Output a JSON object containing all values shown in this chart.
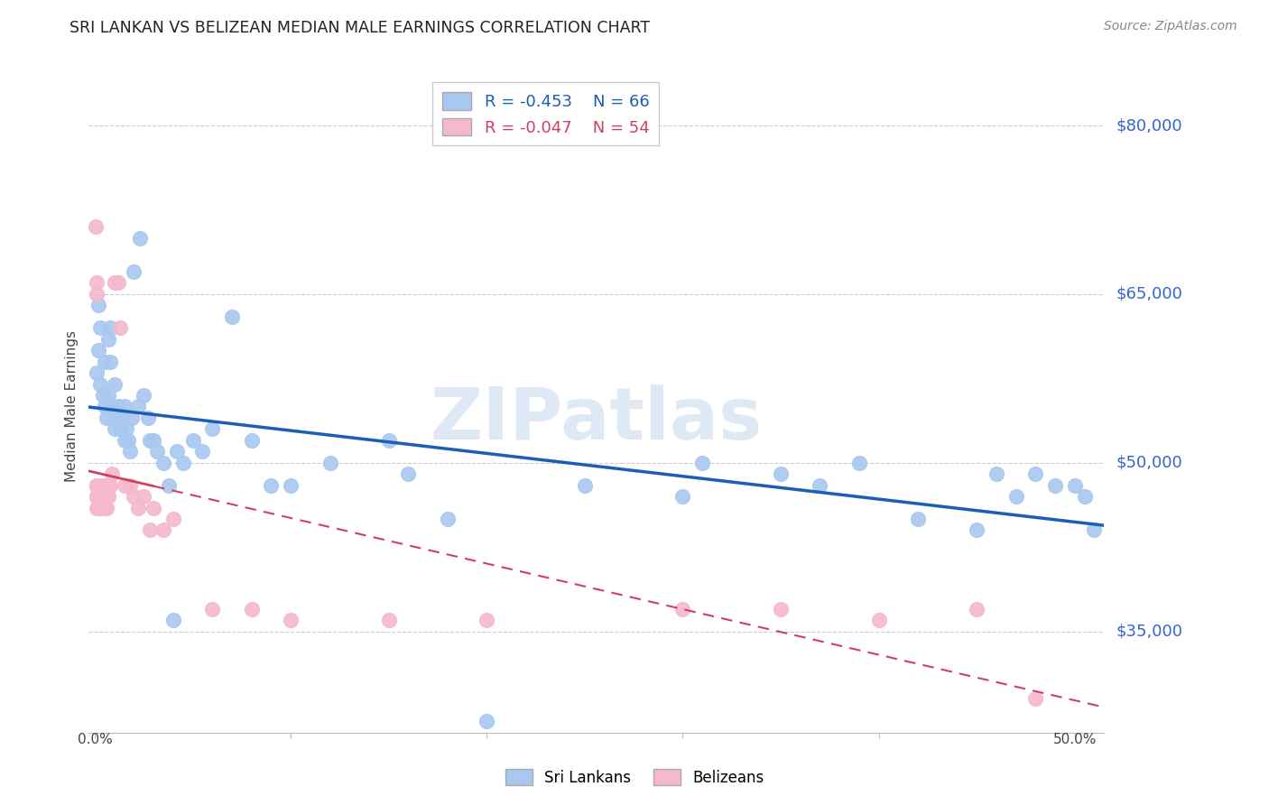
{
  "title": "SRI LANKAN VS BELIZEAN MEDIAN MALE EARNINGS CORRELATION CHART",
  "source": "Source: ZipAtlas.com",
  "ylabel": "Median Male Earnings",
  "ytick_labels": [
    "$35,000",
    "$50,000",
    "$65,000",
    "$80,000"
  ],
  "ytick_values": [
    35000,
    50000,
    65000,
    80000
  ],
  "ymin": 26000,
  "ymax": 84000,
  "xmin": -0.003,
  "xmax": 0.515,
  "sri_lankan_color": "#a8c8f0",
  "belizean_color": "#f5b8cc",
  "sri_lankan_line_color": "#1a5fb4",
  "belizean_line_color": "#d04060",
  "legend_sri_R": "-0.453",
  "legend_sri_N": "66",
  "legend_bel_R": "-0.047",
  "legend_bel_N": "54",
  "watermark": "ZIPatlas",
  "sri_lankans_x": [
    0.001,
    0.002,
    0.002,
    0.003,
    0.003,
    0.004,
    0.005,
    0.005,
    0.006,
    0.007,
    0.007,
    0.008,
    0.008,
    0.009,
    0.01,
    0.01,
    0.011,
    0.012,
    0.013,
    0.014,
    0.015,
    0.015,
    0.016,
    0.017,
    0.018,
    0.019,
    0.02,
    0.022,
    0.023,
    0.025,
    0.027,
    0.028,
    0.03,
    0.032,
    0.035,
    0.038,
    0.04,
    0.042,
    0.045,
    0.05,
    0.055,
    0.06,
    0.07,
    0.08,
    0.09,
    0.1,
    0.12,
    0.15,
    0.16,
    0.18,
    0.2,
    0.25,
    0.3,
    0.31,
    0.35,
    0.37,
    0.39,
    0.42,
    0.45,
    0.46,
    0.47,
    0.48,
    0.49,
    0.5,
    0.505,
    0.51
  ],
  "sri_lankans_y": [
    58000,
    64000,
    60000,
    62000,
    57000,
    56000,
    55000,
    59000,
    54000,
    56000,
    61000,
    62000,
    59000,
    55000,
    53000,
    57000,
    54000,
    55000,
    53000,
    54000,
    52000,
    55000,
    53000,
    52000,
    51000,
    54000,
    67000,
    55000,
    70000,
    56000,
    54000,
    52000,
    52000,
    51000,
    50000,
    48000,
    36000,
    51000,
    50000,
    52000,
    51000,
    53000,
    63000,
    52000,
    48000,
    48000,
    50000,
    52000,
    49000,
    45000,
    27000,
    48000,
    47000,
    50000,
    49000,
    48000,
    50000,
    45000,
    44000,
    49000,
    47000,
    49000,
    48000,
    48000,
    47000,
    44000
  ],
  "belizeans_x": [
    0.0005,
    0.001,
    0.001,
    0.001,
    0.001,
    0.001,
    0.001,
    0.001,
    0.002,
    0.002,
    0.002,
    0.002,
    0.002,
    0.003,
    0.003,
    0.003,
    0.003,
    0.003,
    0.004,
    0.004,
    0.004,
    0.004,
    0.005,
    0.005,
    0.005,
    0.006,
    0.006,
    0.006,
    0.007,
    0.007,
    0.008,
    0.009,
    0.01,
    0.012,
    0.013,
    0.015,
    0.018,
    0.02,
    0.022,
    0.025,
    0.028,
    0.03,
    0.035,
    0.04,
    0.06,
    0.08,
    0.1,
    0.15,
    0.2,
    0.3,
    0.35,
    0.4,
    0.45,
    0.48
  ],
  "belizeans_y": [
    71000,
    66000,
    65000,
    48000,
    48000,
    47000,
    47000,
    46000,
    48000,
    48000,
    47000,
    46000,
    46000,
    48000,
    47000,
    47000,
    46000,
    46000,
    47000,
    46000,
    48000,
    46000,
    47000,
    47000,
    46000,
    47000,
    46000,
    48000,
    48000,
    47000,
    48000,
    49000,
    66000,
    66000,
    62000,
    48000,
    48000,
    47000,
    46000,
    47000,
    44000,
    46000,
    44000,
    45000,
    37000,
    37000,
    36000,
    36000,
    36000,
    37000,
    37000,
    36000,
    37000,
    29000
  ]
}
